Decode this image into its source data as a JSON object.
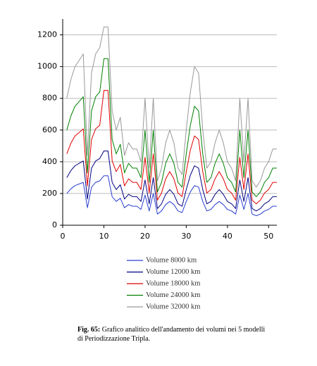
{
  "chart_data": {
    "type": "line",
    "x": [
      1,
      2,
      3,
      4,
      5,
      6,
      7,
      8,
      9,
      10,
      11,
      12,
      13,
      14,
      15,
      16,
      17,
      18,
      19,
      20,
      21,
      22,
      23,
      24,
      25,
      26,
      27,
      28,
      29,
      30,
      31,
      32,
      33,
      34,
      35,
      36,
      37,
      38,
      39,
      40,
      41,
      42,
      43,
      44,
      45,
      46,
      47,
      48,
      49,
      50,
      51,
      52
    ],
    "xlim": [
      0,
      52
    ],
    "xticks": [
      0,
      10,
      20,
      30,
      40,
      50
    ],
    "ylim": [
      0,
      1300
    ],
    "yticks": [
      0,
      200,
      400,
      600,
      800,
      1000,
      1200
    ],
    "grid": true,
    "series": [
      {
        "name": "Volume 8000 km",
        "color": "#2a3fd0",
        "values": [
          200,
          230,
          250,
          260,
          270,
          110,
          240,
          270,
          280,
          312,
          312,
          180,
          150,
          170,
          110,
          130,
          120,
          120,
          100,
          190,
          90,
          200,
          70,
          90,
          130,
          150,
          130,
          90,
          80,
          150,
          210,
          250,
          240,
          150,
          90,
          100,
          130,
          150,
          130,
          100,
          90,
          70,
          190,
          100,
          200,
          70,
          60,
          70,
          90,
          100,
          120,
          120
        ]
      },
      {
        "name": "Volume 12000 km",
        "color": "#000080",
        "values": [
          300,
          345,
          375,
          390,
          405,
          165,
          360,
          405,
          420,
          468,
          468,
          270,
          225,
          255,
          165,
          195,
          180,
          180,
          150,
          285,
          135,
          300,
          105,
          135,
          195,
          225,
          195,
          135,
          120,
          225,
          315,
          375,
          360,
          225,
          135,
          150,
          195,
          225,
          195,
          150,
          135,
          105,
          285,
          150,
          300,
          105,
          90,
          105,
          135,
          150,
          180,
          180
        ]
      },
      {
        "name": "Volume 18000 km",
        "color": "#e00000",
        "values": [
          450,
          518,
          563,
          585,
          608,
          248,
          540,
          608,
          630,
          850,
          850,
          405,
          338,
          383,
          248,
          293,
          270,
          270,
          225,
          428,
          203,
          450,
          158,
          203,
          293,
          338,
          293,
          203,
          180,
          338,
          473,
          563,
          540,
          338,
          203,
          225,
          293,
          338,
          293,
          225,
          203,
          158,
          428,
          225,
          450,
          158,
          135,
          158,
          203,
          225,
          270,
          270
        ]
      },
      {
        "name": "Volume 24000 km",
        "color": "#008000",
        "values": [
          600,
          690,
          750,
          780,
          810,
          330,
          720,
          810,
          840,
          1050,
          1050,
          540,
          450,
          510,
          330,
          390,
          360,
          360,
          300,
          600,
          270,
          600,
          210,
          270,
          390,
          450,
          390,
          270,
          240,
          450,
          630,
          750,
          720,
          450,
          270,
          300,
          390,
          450,
          390,
          300,
          270,
          210,
          600,
          300,
          600,
          210,
          180,
          210,
          270,
          300,
          360,
          360
        ]
      },
      {
        "name": "Volume 32000 km",
        "color": "#999999",
        "values": [
          800,
          920,
          1000,
          1040,
          1080,
          440,
          960,
          1080,
          1120,
          1250,
          1250,
          720,
          600,
          680,
          440,
          520,
          480,
          480,
          400,
          800,
          360,
          800,
          280,
          360,
          520,
          600,
          520,
          360,
          320,
          600,
          840,
          1000,
          960,
          600,
          360,
          400,
          520,
          600,
          520,
          400,
          360,
          280,
          800,
          400,
          800,
          280,
          240,
          280,
          360,
          400,
          480,
          480
        ]
      }
    ]
  },
  "caption": {
    "label": "Fig. 65:",
    "text": "Grafico analitico dell'andamento dei volumi nei 5 modelli di Periodizzazione Tripla."
  }
}
